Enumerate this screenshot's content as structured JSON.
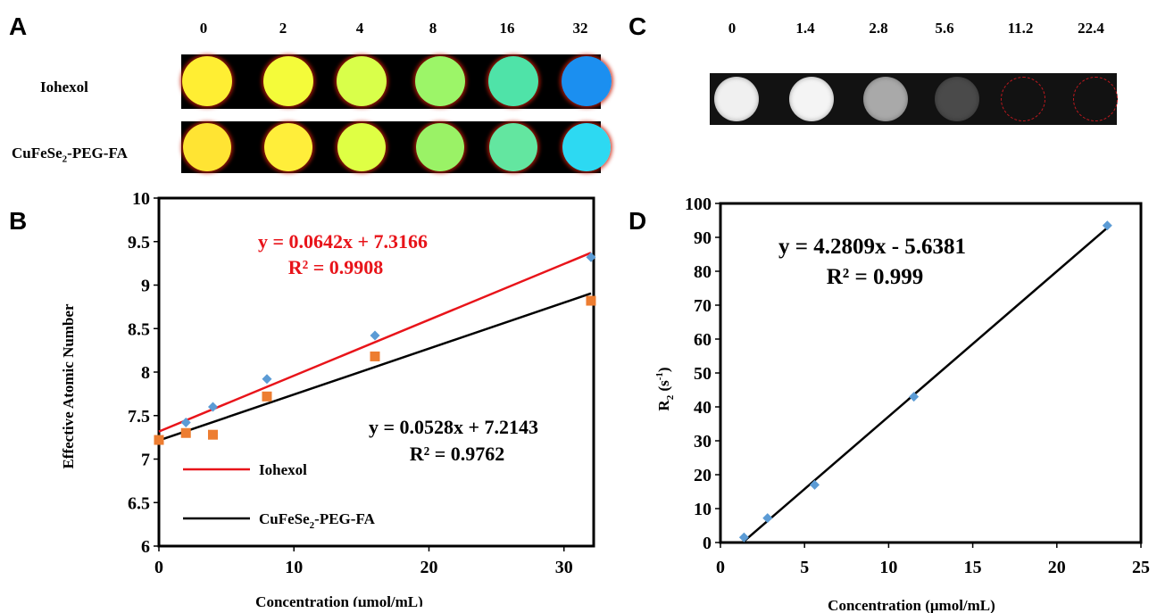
{
  "panel_labels": {
    "a": "A",
    "b": "B",
    "c": "C",
    "d": "D"
  },
  "panel_a": {
    "concentrations": [
      "0",
      "2",
      "4",
      "8",
      "16",
      "32"
    ],
    "rows": [
      {
        "label": "Iohexol",
        "wells": [
          "#ffee33",
          "#f4fb3a",
          "#d9ff4a",
          "#9cf568",
          "#4fe3a8",
          "#1b8ff0"
        ]
      },
      {
        "label_main": "CuFeSe",
        "label_sub": "2",
        "label_tail": "-PEG-FA",
        "wells": [
          "#ffe433",
          "#ffee3a",
          "#dfff44",
          "#9af266",
          "#63e6a0",
          "#2dd9f2"
        ]
      }
    ]
  },
  "panel_c": {
    "concentrations": [
      "0",
      "1.4",
      "2.8",
      "5.6",
      "11.2",
      "22.4"
    ],
    "wells": [
      {
        "fill": "#f0f0f0",
        "ring": "none"
      },
      {
        "fill": "#f4f4f4",
        "ring": "none"
      },
      {
        "fill": "#a9a9a9",
        "ring": "none"
      },
      {
        "fill": "#4a4a4a",
        "ring": "none"
      },
      {
        "fill": "#121212",
        "ring": "#c0181e"
      },
      {
        "fill": "#121212",
        "ring": "#c0181e"
      }
    ]
  },
  "chart_data": [
    {
      "type": "scatter",
      "panel": "B",
      "title": "",
      "xlabel": "Concentration (μmol/mL)",
      "ylabel": "Effective Atomic Number",
      "xlim": [
        0,
        32
      ],
      "ylim": [
        6,
        10
      ],
      "x_ticks": [
        "0",
        "10",
        "20",
        "30"
      ],
      "y_ticks": [
        "6",
        "6.5",
        "7",
        "7.5",
        "8",
        "8.5",
        "9",
        "9.5",
        "10"
      ],
      "series": [
        {
          "name": "Iohexol",
          "marker": "diamond",
          "marker_color": "#5b9bd5",
          "line_color": "#e8141a",
          "x": [
            0,
            2,
            4,
            8,
            16,
            32
          ],
          "y": [
            7.22,
            7.42,
            7.6,
            7.92,
            8.42,
            9.32
          ],
          "trend": {
            "slope": 0.0642,
            "intercept": 7.3166
          },
          "equation": "y = 0.0642x + 7.3166",
          "r2": "R² = 0.9908"
        },
        {
          "name_main": "CuFeSe",
          "name_sub": "2",
          "name_tail": "-PEG-FA",
          "marker": "square",
          "marker_color": "#ed7d31",
          "line_color": "#000000",
          "x": [
            0,
            2,
            4,
            8,
            16,
            32
          ],
          "y": [
            7.22,
            7.3,
            7.28,
            7.72,
            8.18,
            8.82
          ],
          "trend": {
            "slope": 0.0528,
            "intercept": 7.2143
          },
          "equation": "y = 0.0528x + 7.2143",
          "r2": "R² = 0.9762"
        }
      ],
      "legend": "bottom-left",
      "grid": false
    },
    {
      "type": "scatter",
      "panel": "D",
      "title": "",
      "xlabel": "Concentration (μmol/mL)",
      "ylabel_main": "R",
      "ylabel_sub": "2",
      "ylabel_tail": " (s",
      "ylabel_sup": "-1",
      "ylabel_end": ")",
      "xlim": [
        0,
        25
      ],
      "ylim": [
        0,
        100
      ],
      "x_ticks": [
        "0",
        "5",
        "10",
        "15",
        "20",
        "25"
      ],
      "y_ticks": [
        "0",
        "10",
        "20",
        "30",
        "40",
        "50",
        "60",
        "70",
        "80",
        "90",
        "100"
      ],
      "series": [
        {
          "marker": "diamond",
          "marker_color": "#5b9bd5",
          "line_color": "#000000",
          "x": [
            1.4,
            2.8,
            5.6,
            11.5,
            23.0
          ],
          "y": [
            1.5,
            7.2,
            17.0,
            43.0,
            93.5
          ],
          "trend": {
            "slope": 4.2809,
            "intercept": -5.6381,
            "x_from": 1.32,
            "x_to": 23.0
          },
          "equation": "y = 4.2809x - 5.6381",
          "r2": "R² = 0.999"
        }
      ],
      "grid": false
    }
  ]
}
